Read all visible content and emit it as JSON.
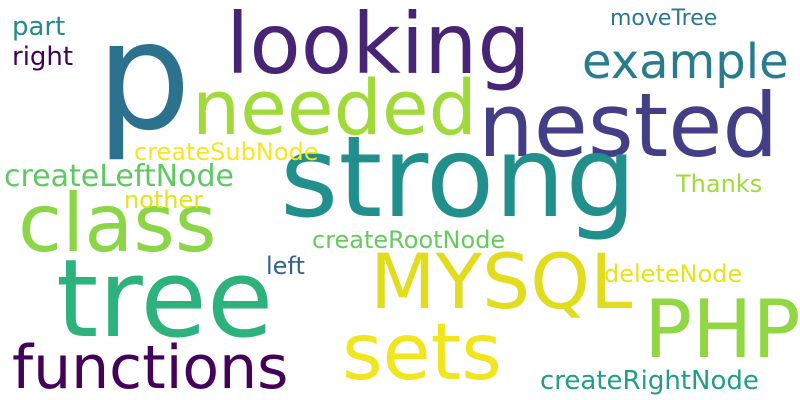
{
  "words": {
    "p": {
      "text": "p",
      "color": "#2c718e"
    },
    "looking": {
      "text": "looking",
      "color": "#482475"
    },
    "strong": {
      "text": "strong",
      "color": "#21908d"
    },
    "tree": {
      "text": "tree",
      "color": "#2db27d"
    },
    "nested": {
      "text": "nested",
      "color": "#433e85"
    },
    "needed": {
      "text": "needed",
      "color": "#a0da39"
    },
    "class": {
      "text": "class",
      "color": "#8bd646"
    },
    "mysql": {
      "text": "MYSQL",
      "color": "#e1dd1e"
    },
    "php": {
      "text": "PHP",
      "color": "#90d743"
    },
    "sets": {
      "text": "sets",
      "color": "#f1e51d"
    },
    "functions": {
      "text": "functions",
      "color": "#44015a"
    },
    "example": {
      "text": "example",
      "color": "#287c8e"
    },
    "moveTree": {
      "text": "moveTree",
      "color": "#2a788e"
    },
    "part": {
      "text": "part",
      "color": "#238a8d"
    },
    "right": {
      "text": "right",
      "color": "#440154"
    },
    "createSubNode": {
      "text": "createSubNode",
      "color": "#f6e620"
    },
    "createLeftNode": {
      "text": "createLeftNode",
      "color": "#5ec962"
    },
    "nother": {
      "text": "nother",
      "color": "#e2e418"
    },
    "thanks": {
      "text": "Thanks",
      "color": "#9fda3a"
    },
    "createRootNode": {
      "text": "createRootNode",
      "color": "#65cb5e"
    },
    "left": {
      "text": "left",
      "color": "#33638d"
    },
    "deleteNode": {
      "text": "deleteNode",
      "color": "#e5e419"
    },
    "createRightNode": {
      "text": "createRightNode",
      "color": "#1f9e89"
    }
  }
}
